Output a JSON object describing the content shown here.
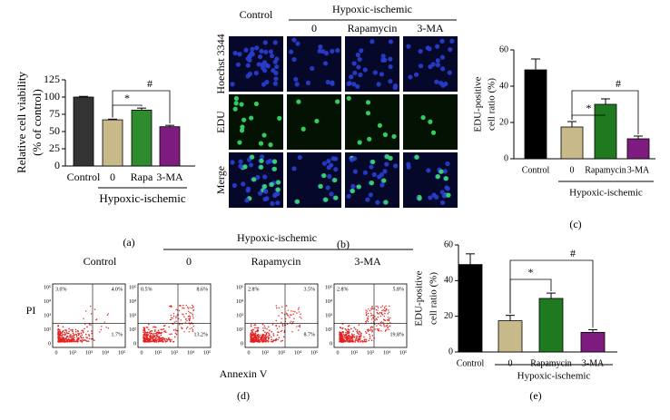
{
  "chart_data": [
    {
      "type": "bar",
      "panel_label": "(a)",
      "y_label": "Relative cell viability",
      "y_label_2": "(% of control)",
      "categories": [
        "Control",
        "0",
        "Rapa",
        "3-MA"
      ],
      "values": [
        100,
        67,
        81,
        57
      ],
      "errors": [
        1,
        1,
        3,
        2
      ],
      "colors": [
        "#333333",
        "#c8b98a",
        "#2e8b2e",
        "#7d1b7e"
      ],
      "ylim": [
        0,
        125
      ],
      "yticks": [
        0,
        25,
        50,
        75,
        100,
        125
      ],
      "group_label": "Hypoxic-ischemic",
      "annotations": [
        "*",
        "#"
      ]
    },
    {
      "type": "bar",
      "panel_label": "(c)",
      "y_label": "EDU-positive",
      "y_label_2": "cell ratio (%)",
      "categories": [
        "Control",
        "0",
        "Rapamycin",
        "3-MA"
      ],
      "values": [
        49,
        17.5,
        30,
        11
      ],
      "errors": [
        6,
        3,
        3,
        1.5
      ],
      "colors": [
        "#000000",
        "#c8b98a",
        "#1f7a1f",
        "#7d1b7e"
      ],
      "ylim": [
        0,
        60
      ],
      "yticks": [
        0,
        20,
        40,
        60
      ],
      "group_label": "Hypoxic-ischemic",
      "annotations": [
        "*",
        "#"
      ]
    },
    {
      "type": "bar",
      "panel_label": "(e)",
      "y_label": "EDU-positive",
      "y_label_2": "cell ratio (%)",
      "categories": [
        "Control",
        "0",
        "Rapamycin",
        "3-MA"
      ],
      "values": [
        49,
        17.5,
        30,
        11
      ],
      "errors": [
        6,
        3,
        3,
        1.5
      ],
      "colors": [
        "#000000",
        "#c8b98a",
        "#1f7a1f",
        "#7d1b7e"
      ],
      "ylim": [
        0,
        60
      ],
      "yticks": [
        0,
        20,
        40,
        60
      ],
      "group_label": "Hypoxic-ischemic",
      "annotations": [
        "*",
        "#"
      ]
    }
  ],
  "microscopy": {
    "panel_label": "(b)",
    "group_label": "Hypoxic-ischemic",
    "columns": [
      "Control",
      "0",
      "Rapamycin",
      "3-MA"
    ],
    "rows": [
      "Hoechst 3344",
      "EDU",
      "Merge"
    ]
  },
  "flow": {
    "panel_label": "(d)",
    "group_label": "Hypoxic-ischemic",
    "x_label": "Annexin V",
    "y_label": "PI",
    "xticks": [
      "0",
      "10²",
      "10³",
      "10⁴",
      "10⁵"
    ],
    "yticks": [
      "0",
      "10²",
      "10³",
      "10⁴",
      "10⁵"
    ],
    "plots": [
      {
        "title": "Control",
        "upper_left": "3.0%",
        "upper_right": "4.0%",
        "lower_right": "1.7%"
      },
      {
        "title": "0",
        "upper_left": "0.5%",
        "upper_right": "8.6%",
        "lower_right": "13.2%"
      },
      {
        "title": "Rapamycin",
        "upper_left": "2.8%",
        "upper_right": "3.5%",
        "lower_right": "8.7%"
      },
      {
        "title": "3-MA",
        "upper_left": "2.8%",
        "upper_right": "5.8%",
        "lower_right": "19.8%"
      }
    ]
  }
}
